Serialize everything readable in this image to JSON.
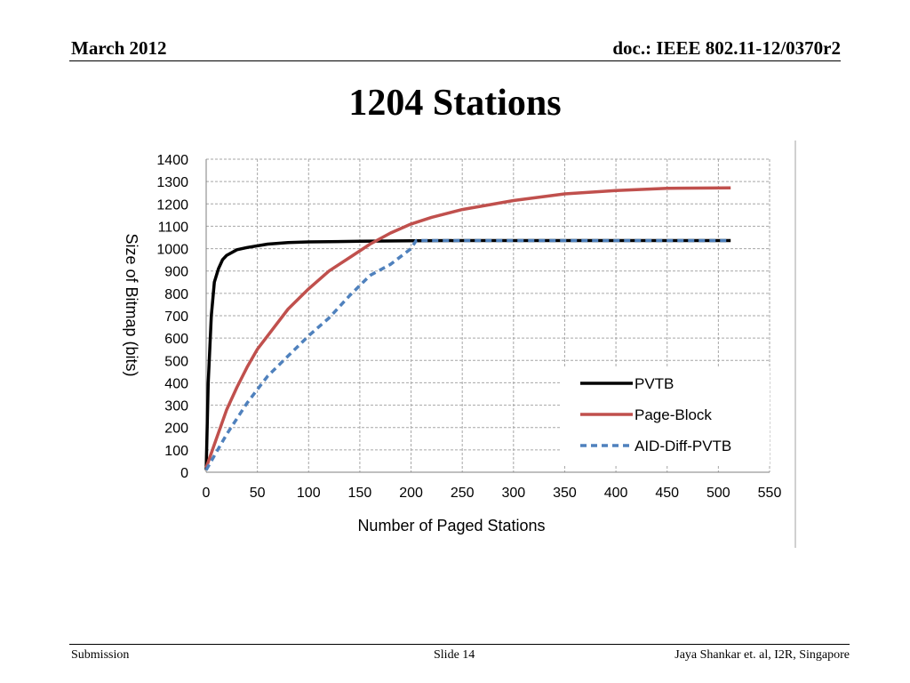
{
  "header": {
    "date": "March 2012",
    "doc": "doc.: IEEE 802.11-12/0370r2"
  },
  "slide_title": "1204 Stations",
  "footer": {
    "left": "Submission",
    "center": "Slide 14",
    "right": "Jaya Shankar et. al, I2R, Singapore"
  },
  "colors": {
    "PVTB": "#000000",
    "Page-Block": "#c0504d",
    "AID-Diff-PVTB": "#4f81bd",
    "grid": "#a6a6a6"
  },
  "chart_data": {
    "type": "line",
    "xlabel": "Number of Paged Stations",
    "ylabel": "Size of Bitmap (bits)",
    "xlim": [
      0,
      550
    ],
    "ylim": [
      0,
      1400
    ],
    "xticks": [
      0,
      50,
      100,
      150,
      200,
      250,
      300,
      350,
      400,
      450,
      500,
      550
    ],
    "yticks": [
      0,
      100,
      200,
      300,
      400,
      500,
      600,
      700,
      800,
      900,
      1000,
      1100,
      1200,
      1300,
      1400
    ],
    "grid": true,
    "legend_position": "bottom-right",
    "series": [
      {
        "name": "PVTB",
        "style": "solid",
        "x": [
          0,
          2,
          5,
          8,
          12,
          16,
          20,
          30,
          40,
          60,
          80,
          100,
          150,
          200,
          250,
          300,
          400,
          512
        ],
        "y": [
          10,
          400,
          700,
          850,
          910,
          950,
          970,
          995,
          1005,
          1020,
          1027,
          1030,
          1033,
          1035,
          1036,
          1036,
          1036,
          1036
        ]
      },
      {
        "name": "Page-Block",
        "style": "solid",
        "x": [
          0,
          10,
          20,
          30,
          40,
          50,
          60,
          80,
          100,
          120,
          140,
          160,
          180,
          200,
          220,
          250,
          300,
          350,
          400,
          450,
          512
        ],
        "y": [
          20,
          150,
          280,
          380,
          470,
          550,
          610,
          730,
          820,
          900,
          960,
          1020,
          1070,
          1110,
          1140,
          1175,
          1215,
          1245,
          1260,
          1270,
          1272
        ]
      },
      {
        "name": "AID-Diff-PVTB",
        "style": "dashed",
        "x": [
          0,
          10,
          20,
          30,
          40,
          50,
          60,
          80,
          100,
          120,
          140,
          160,
          180,
          200,
          205,
          250,
          300,
          400,
          512
        ],
        "y": [
          10,
          90,
          170,
          240,
          310,
          370,
          430,
          520,
          610,
          690,
          790,
          880,
          930,
          1000,
          1036,
          1036,
          1036,
          1036,
          1036
        ]
      }
    ]
  }
}
